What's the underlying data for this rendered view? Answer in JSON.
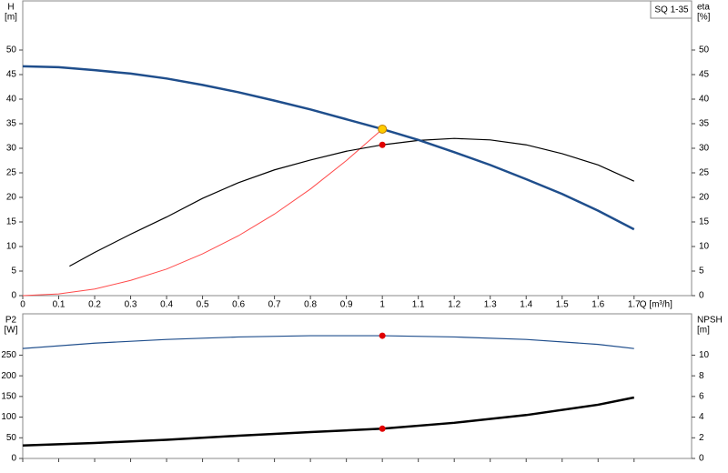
{
  "chart_data": [
    {
      "type": "line",
      "legend_label": "SQ 1-35",
      "ylabel": "H",
      "yunit": "[m]",
      "y2label": "eta",
      "y2unit": "[%]",
      "xlabel": "Q [m³/h]",
      "xlim": [
        0,
        1.86
      ],
      "xticks": [
        0,
        0.1,
        0.2,
        0.3,
        0.4,
        0.5,
        0.6,
        0.7,
        0.8,
        0.9,
        1,
        1.1,
        1.2,
        1.3,
        1.4,
        1.5,
        1.6,
        1.7
      ],
      "ylim": [
        0,
        60
      ],
      "yticks": [
        0,
        5,
        10,
        15,
        20,
        25,
        30,
        35,
        40,
        45,
        50
      ],
      "y2lim": [
        0,
        60
      ],
      "y2ticks": [
        0,
        5,
        10,
        15,
        20,
        25,
        30,
        35,
        40,
        45,
        50
      ],
      "series": [
        {
          "color": "#ff4a4a",
          "line_width": 1,
          "x": [
            0,
            0.1,
            0.2,
            0.3,
            0.4,
            0.5,
            0.6,
            0.7,
            0.8,
            0.9,
            1
          ],
          "values": [
            0,
            0.35,
            1.35,
            3.1,
            5.4,
            8.5,
            12.2,
            16.6,
            21.7,
            27.5,
            33.9
          ]
        },
        {
          "color": "#000000",
          "line_width": 1.2,
          "axis": "y2",
          "x": [
            0.13,
            0.2,
            0.3,
            0.4,
            0.5,
            0.6,
            0.7,
            0.8,
            0.9,
            1,
            1.1,
            1.2,
            1.3,
            1.4,
            1.5,
            1.6,
            1.7
          ],
          "values": [
            6,
            8.8,
            12.5,
            16,
            19.8,
            23,
            25.6,
            27.6,
            29.4,
            30.7,
            31.6,
            32,
            31.7,
            30.7,
            28.9,
            26.6,
            23.3
          ]
        },
        {
          "color": "#1f4e8c",
          "line_width": 2.5,
          "x": [
            0,
            0.1,
            0.2,
            0.3,
            0.4,
            0.5,
            0.6,
            0.7,
            0.8,
            0.9,
            1,
            1.1,
            1.2,
            1.3,
            1.4,
            1.5,
            1.6,
            1.7
          ],
          "values": [
            46.7,
            46.5,
            45.9,
            45.2,
            44.2,
            42.9,
            41.4,
            39.7,
            37.9,
            35.9,
            33.9,
            31.7,
            29.2,
            26.6,
            23.7,
            20.7,
            17.3,
            13.5
          ]
        }
      ],
      "points": [
        {
          "x": 1,
          "y": 33.9,
          "color": "#ffcc00"
        },
        {
          "x": 1,
          "y": 30.7,
          "color": "#e00000",
          "axis": "y2"
        }
      ]
    },
    {
      "type": "line",
      "ylabel": "P2",
      "yunit": "[W]",
      "y2label": "NPSH",
      "y2unit": "[m]",
      "xlim": [
        0,
        1.86
      ],
      "xticks": [
        0,
        0.1,
        0.2,
        0.3,
        0.4,
        0.5,
        0.6,
        0.7,
        0.8,
        0.9,
        1,
        1.1,
        1.2,
        1.3,
        1.4,
        1.5,
        1.6,
        1.7
      ],
      "ylim": [
        0,
        350
      ],
      "yticks": [
        0,
        50,
        100,
        150,
        200,
        250
      ],
      "y2lim": [
        0,
        14
      ],
      "y2ticks": [
        0,
        2,
        4,
        6,
        8,
        10
      ],
      "series": [
        {
          "color": "#1f4e8c",
          "line_width": 1.2,
          "x": [
            0,
            0.2,
            0.4,
            0.6,
            0.8,
            1,
            1.2,
            1.4,
            1.6,
            1.7
          ],
          "values": [
            266,
            279,
            288,
            294,
            297,
            297,
            294,
            288,
            276,
            266
          ]
        },
        {
          "color": "#000000",
          "line_width": 2.5,
          "axis": "y2",
          "x": [
            0,
            0.2,
            0.4,
            0.6,
            0.8,
            1,
            1.2,
            1.4,
            1.6,
            1.7
          ],
          "values": [
            1.26,
            1.5,
            1.8,
            2.2,
            2.55,
            2.88,
            3.45,
            4.2,
            5.2,
            5.9
          ]
        }
      ],
      "points": [
        {
          "x": 1,
          "y": 297,
          "color": "#e00000"
        },
        {
          "x": 1,
          "y": 2.88,
          "color": "#e00000",
          "axis": "y2"
        }
      ]
    }
  ]
}
